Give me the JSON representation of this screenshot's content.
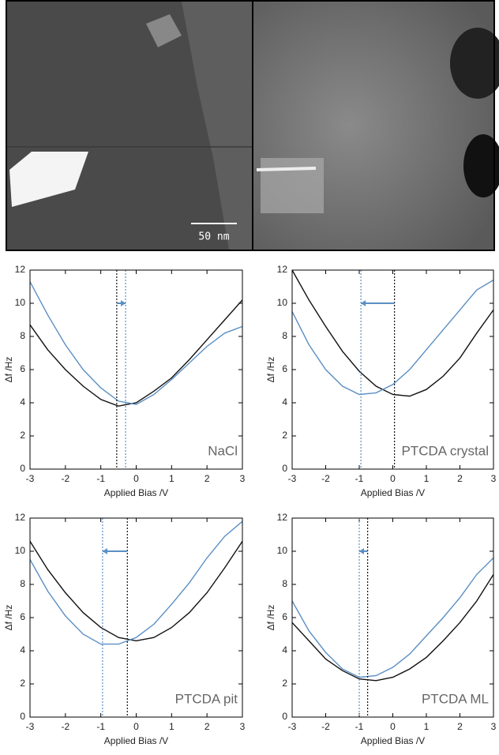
{
  "images": {
    "scale_bar": "50 nm"
  },
  "chart_data": [
    {
      "type": "line",
      "title": "NaCl",
      "xlabel": "Applied Bias /V",
      "ylabel": "Δf /Hz",
      "xlim": [
        -3,
        3
      ],
      "ylim": [
        0,
        12
      ],
      "xticks": [
        -3,
        -2,
        -1,
        0,
        1,
        2,
        3
      ],
      "yticks": [
        0,
        2,
        4,
        6,
        8,
        10,
        12
      ],
      "x": [
        -3,
        -2.5,
        -2,
        -1.5,
        -1,
        -0.5,
        0,
        0.5,
        1,
        1.5,
        2,
        2.5,
        3
      ],
      "series": [
        {
          "color": "#111111",
          "values": [
            8.7,
            7.2,
            6.0,
            5.0,
            4.2,
            3.8,
            4.0,
            4.7,
            5.5,
            6.6,
            7.8,
            9.0,
            10.2
          ]
        },
        {
          "color": "#5b8fc4",
          "values": [
            11.3,
            9.3,
            7.5,
            6.0,
            4.9,
            4.1,
            3.9,
            4.5,
            5.4,
            6.4,
            7.4,
            8.2,
            8.6
          ]
        }
      ],
      "markers": [
        {
          "x": -0.55,
          "color": "#111111"
        },
        {
          "x": -0.3,
          "color": "#5b8fc4"
        }
      ]
    },
    {
      "type": "line",
      "title": "PTCDA crystal",
      "xlabel": "Applied Bias /V",
      "ylabel": "Δf /Hz",
      "xlim": [
        -3,
        3
      ],
      "ylim": [
        0,
        12
      ],
      "xticks": [
        -3,
        -2,
        -1,
        0,
        1,
        2,
        3
      ],
      "yticks": [
        0,
        2,
        4,
        6,
        8,
        10,
        12
      ],
      "x": [
        -3,
        -2.5,
        -2,
        -1.5,
        -1,
        -0.5,
        0,
        0.5,
        1,
        1.5,
        2,
        2.5,
        3
      ],
      "series": [
        {
          "color": "#111111",
          "values": [
            12.0,
            10.2,
            8.6,
            7.1,
            5.9,
            5.0,
            4.5,
            4.4,
            4.8,
            5.6,
            6.7,
            8.2,
            9.6
          ]
        },
        {
          "color": "#5b8fc4",
          "values": [
            9.5,
            7.5,
            6.0,
            5.0,
            4.5,
            4.6,
            5.1,
            6.0,
            7.2,
            8.4,
            9.6,
            10.8,
            11.4
          ]
        }
      ],
      "markers": [
        {
          "x": 0.05,
          "color": "#111111"
        },
        {
          "x": -0.95,
          "color": "#5b8fc4"
        }
      ]
    },
    {
      "type": "line",
      "title": "PTCDA pit",
      "xlabel": "Applied Bias /V",
      "ylabel": "Δf /Hz",
      "xlim": [
        -3,
        3
      ],
      "ylim": [
        0,
        12
      ],
      "xticks": [
        -3,
        -2,
        -1,
        0,
        1,
        2,
        3
      ],
      "yticks": [
        0,
        2,
        4,
        6,
        8,
        10,
        12
      ],
      "x": [
        -3,
        -2.5,
        -2,
        -1.5,
        -1,
        -0.5,
        0,
        0.5,
        1,
        1.5,
        2,
        2.5,
        3
      ],
      "series": [
        {
          "color": "#111111",
          "values": [
            10.6,
            8.9,
            7.5,
            6.3,
            5.4,
            4.8,
            4.6,
            4.8,
            5.4,
            6.3,
            7.5,
            9.0,
            10.6
          ]
        },
        {
          "color": "#5b8fc4",
          "values": [
            9.5,
            7.6,
            6.1,
            5.0,
            4.4,
            4.4,
            4.8,
            5.6,
            6.8,
            8.1,
            9.6,
            10.9,
            11.8
          ]
        }
      ],
      "markers": [
        {
          "x": -0.25,
          "color": "#111111"
        },
        {
          "x": -0.95,
          "color": "#5b8fc4"
        }
      ]
    },
    {
      "type": "line",
      "title": "PTCDA ML",
      "xlabel": "Applied Bias /V",
      "ylabel": "Δf /Hz",
      "xlim": [
        -3,
        3
      ],
      "ylim": [
        0,
        12
      ],
      "xticks": [
        -3,
        -2,
        -1,
        0,
        1,
        2,
        3
      ],
      "yticks": [
        0,
        2,
        4,
        6,
        8,
        10,
        12
      ],
      "x": [
        -3,
        -2.5,
        -2,
        -1.5,
        -1,
        -0.5,
        0,
        0.5,
        1,
        1.5,
        2,
        2.5,
        3
      ],
      "series": [
        {
          "color": "#111111",
          "values": [
            5.7,
            4.6,
            3.5,
            2.8,
            2.3,
            2.2,
            2.4,
            2.9,
            3.6,
            4.6,
            5.7,
            7.0,
            8.6
          ]
        },
        {
          "color": "#5b8fc4",
          "values": [
            7.0,
            5.2,
            3.9,
            2.9,
            2.4,
            2.5,
            3.0,
            3.8,
            4.9,
            6.0,
            7.2,
            8.6,
            9.6
          ]
        }
      ],
      "markers": [
        {
          "x": -0.75,
          "color": "#111111"
        },
        {
          "x": -1.0,
          "color": "#5b8fc4"
        }
      ]
    }
  ]
}
